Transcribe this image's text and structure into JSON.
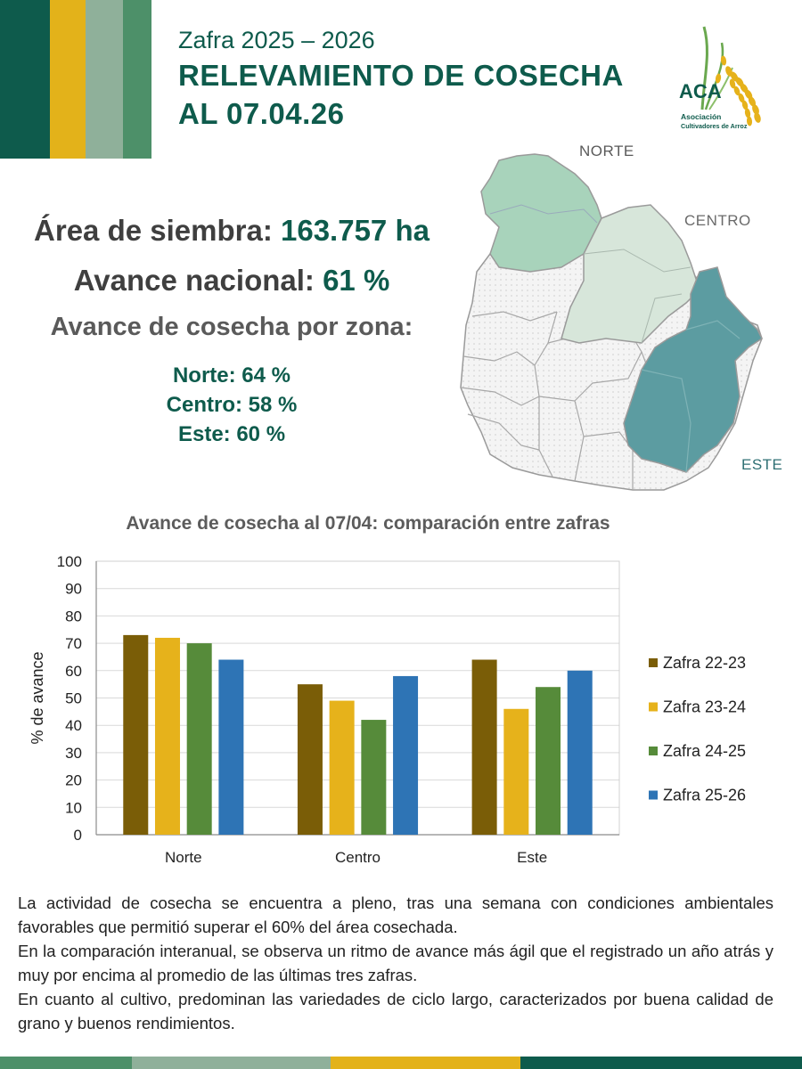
{
  "header": {
    "season": "Zafra 2025 – 2026",
    "title_line1": "RELEVAMIENTO DE COSECHA",
    "title_line2": "AL 07.04.26"
  },
  "logo": {
    "acronym": "ACA",
    "line1": "Asociación",
    "line2": "Cultivadores de Arroz"
  },
  "stats": {
    "area_label": "Área de siembra:",
    "area_value": "163.757 ha",
    "advance_label": "Avance nacional:",
    "advance_value": "61 %",
    "by_zone_heading": "Avance de cosecha por zona:",
    "zones": [
      {
        "text": "Norte: 64 %"
      },
      {
        "text": "Centro: 58 %"
      },
      {
        "text": "Este: 60 %"
      }
    ]
  },
  "map": {
    "labels": {
      "norte": "NORTE",
      "centro": "CENTRO",
      "este": "ESTE"
    },
    "colors": {
      "norte": "#a8d3bb",
      "centro": "#d7e6da",
      "este": "#5c9ca1",
      "other": "#f2f2f2"
    }
  },
  "chart_data": {
    "type": "bar",
    "title": "Avance de cosecha al 07/04: comparación entre zafras",
    "ylabel": "%  de avance",
    "xlabel": "",
    "ylim": [
      0,
      100
    ],
    "yticks": [
      0,
      10,
      20,
      30,
      40,
      50,
      60,
      70,
      80,
      90,
      100
    ],
    "grid": true,
    "legend_position": "right",
    "categories": [
      "Norte",
      "Centro",
      "Este"
    ],
    "series": [
      {
        "name": "Zafra 22-23",
        "color": "#7a5d07",
        "values": [
          73,
          55,
          64
        ]
      },
      {
        "name": "Zafra 23-24",
        "color": "#e6b21b",
        "values": [
          72,
          49,
          46
        ]
      },
      {
        "name": "Zafra 24-25",
        "color": "#568b3a",
        "values": [
          70,
          42,
          54
        ]
      },
      {
        "name": "Zafra 25-26",
        "color": "#2e74b5",
        "values": [
          64,
          58,
          60
        ]
      }
    ]
  },
  "body_text": {
    "p1": "La actividad de cosecha se encuentra a pleno, tras una semana con condiciones ambientales favorables que permitió superar el 60% del área cosechada.",
    "p2": "En la comparación interanual, se observa un ritmo de avance más ágil que el registrado un año atrás y muy por encima al promedio de las últimas tres zafras.",
    "p3": "En cuanto al cultivo, predominan las variedades de ciclo largo, caracterizados por buena calidad de grano y buenos rendimientos."
  },
  "colors": {
    "brand_dark": "#0e5b4c",
    "brand_yellow": "#e3b21a",
    "brand_sage": "#8fb09a",
    "brand_green": "#4d9069"
  }
}
